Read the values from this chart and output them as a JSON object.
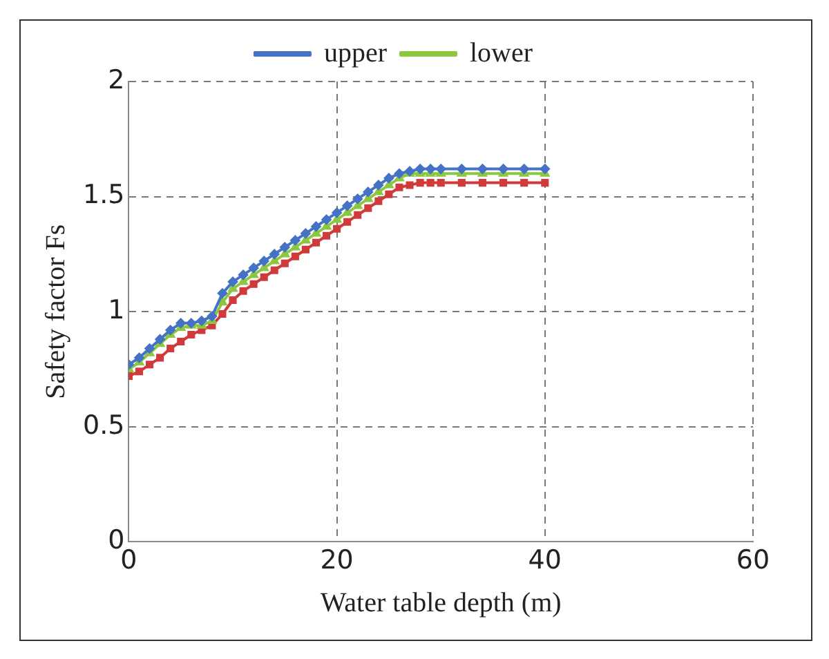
{
  "chart_data": {
    "type": "line",
    "xlabel": "Water table depth (m)",
    "ylabel": "Safety factor Fs",
    "x": [
      0,
      1,
      2,
      3,
      4,
      5,
      6,
      7,
      8,
      9,
      10,
      11,
      12,
      13,
      14,
      15,
      16,
      17,
      18,
      19,
      20,
      21,
      22,
      23,
      24,
      25,
      26,
      27,
      28,
      29,
      30,
      32,
      34,
      36,
      38,
      40
    ],
    "series": [
      {
        "name": "upper",
        "color": "#4472c4",
        "marker": "diamond",
        "values": [
          0.77,
          0.8,
          0.84,
          0.88,
          0.92,
          0.95,
          0.95,
          0.96,
          0.98,
          1.08,
          1.13,
          1.16,
          1.19,
          1.22,
          1.25,
          1.28,
          1.31,
          1.34,
          1.37,
          1.4,
          1.43,
          1.46,
          1.49,
          1.52,
          1.55,
          1.58,
          1.6,
          1.61,
          1.62,
          1.62,
          1.62,
          1.62,
          1.62,
          1.62,
          1.62,
          1.62
        ]
      },
      {
        "name": "lower",
        "color": "#8dc63f",
        "marker": "triangle",
        "values": [
          0.75,
          0.78,
          0.82,
          0.86,
          0.9,
          0.93,
          0.94,
          0.94,
          0.96,
          1.04,
          1.1,
          1.13,
          1.16,
          1.19,
          1.22,
          1.25,
          1.28,
          1.31,
          1.34,
          1.37,
          1.4,
          1.43,
          1.46,
          1.49,
          1.52,
          1.55,
          1.58,
          1.6,
          1.6,
          1.6,
          1.6,
          1.6,
          1.6,
          1.6,
          1.6,
          1.6
        ]
      },
      {
        "color": "#d03a3a",
        "marker": "square",
        "values": [
          0.72,
          0.74,
          0.77,
          0.8,
          0.84,
          0.87,
          0.9,
          0.92,
          0.94,
          0.99,
          1.05,
          1.09,
          1.12,
          1.15,
          1.18,
          1.21,
          1.24,
          1.27,
          1.3,
          1.33,
          1.36,
          1.39,
          1.42,
          1.45,
          1.48,
          1.51,
          1.54,
          1.55,
          1.56,
          1.56,
          1.56,
          1.56,
          1.56,
          1.56,
          1.56,
          1.56
        ]
      }
    ],
    "xlim": [
      0,
      60
    ],
    "xticks": [
      0,
      20,
      40,
      60
    ],
    "ylim": [
      0,
      2
    ],
    "yticks": [
      0,
      0.5,
      1,
      1.5,
      2
    ],
    "grid": true,
    "legend": "top",
    "line_style": "solid"
  }
}
